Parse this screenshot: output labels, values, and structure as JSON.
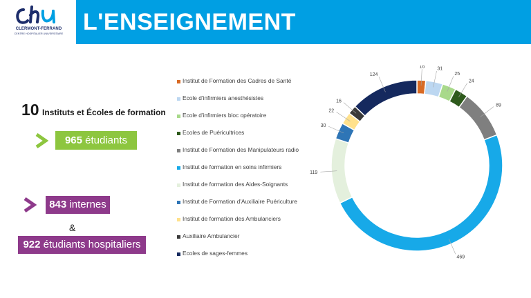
{
  "logo": {
    "name": "CLERMONT-FERRAND",
    "subtitle": "CENTRE HOSPITALIER UNIVERSITAIRE"
  },
  "header": {
    "title": "L'ENSEIGNEMENT"
  },
  "stats": {
    "institutes_number": "10",
    "institutes_label": "Instituts et Écoles de formation",
    "students_number": "965",
    "students_label": "étudiants",
    "interns_number": "843",
    "interns_label": "internes",
    "ampersand": "&",
    "hospital_students_number": "922",
    "hospital_students_label": "étudiants hospitaliers"
  },
  "colors": {
    "header": "#009fe3",
    "green": "#8dc63f",
    "purple": "#8e3a8b",
    "navy": "#1d2d6b"
  },
  "chart_data": {
    "type": "pie",
    "variant": "donut",
    "title": "",
    "categories": [
      "Institut de Formation des Cadres de Santé",
      "Ecole d'infirmiers anesthésistes",
      "Ecole d'infirmiers bloc opératoire",
      "Ecoles de Puéricultrices",
      "Institut de Formation des Manipulateurs radio",
      "Institut de formation en soins infirmiers",
      "Institut de formation des Aides-Soignants",
      "Institut de Formation d'Auxiliaire Puériculture",
      "Institut de formation des Ambulanciers",
      "Auxiliaire Ambulancier",
      "Ecoles de sages-femmes"
    ],
    "values": [
      16,
      31,
      25,
      24,
      89,
      469,
      119,
      30,
      22,
      16,
      124
    ],
    "colors": [
      "#d86a24",
      "#bcd7f1",
      "#a8d98a",
      "#2e5a1c",
      "#7f7f7f",
      "#17a9e8",
      "#e4f0dd",
      "#2e75b6",
      "#ffe18c",
      "#3a3a3a",
      "#15295e"
    ],
    "data_labels": [
      "16",
      "31",
      "25",
      "24",
      "89",
      "469",
      "119",
      "30",
      "22",
      "16",
      "124"
    ],
    "legend_position": "left"
  }
}
